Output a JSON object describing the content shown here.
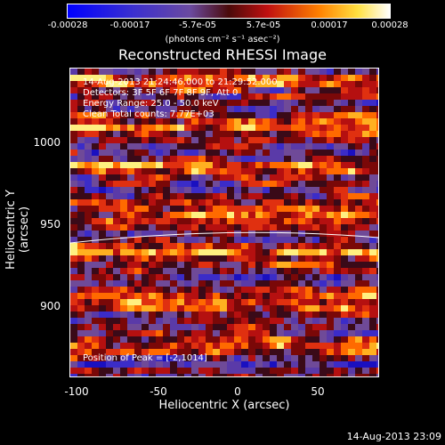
{
  "colorbar": {
    "ticks": [
      "-0.00028",
      "-0.00017",
      "-5.7e-05",
      "5.7e-05",
      "0.00017",
      "0.00028"
    ],
    "unit": "(photons cm⁻² s⁻¹ asec⁻²)"
  },
  "title": "Reconstructed RHESSI Image",
  "annotations": {
    "time": "14-Aug-2013 21:24:46.000 to 21:29:52.000",
    "detectors": "Detectors: 3F 5F 6F 7F 8F 9F, Att 0",
    "energy": "Energy Range: 25.0 - 50.0 keV",
    "clean": "Clean     Total counts: 7.77E+03",
    "peak": "Position of Peak = [-2,1014]"
  },
  "axes": {
    "x_label": "Heliocentric X (arcsec)",
    "y_label": "Heliocentric Y (arcsec)",
    "x_ticks": [
      "-100",
      "-50",
      "0",
      "50"
    ],
    "y_ticks": [
      "1000",
      "950",
      "900"
    ]
  },
  "footer": "14-Aug-2013 23:09",
  "chart_data": {
    "type": "heatmap",
    "title": "Reconstructed RHESSI Image",
    "xlabel": "Heliocentric X (arcsec)",
    "ylabel": "Heliocentric Y (arcsec)",
    "xlim": [
      -102,
      88
    ],
    "ylim": [
      859,
      1033
    ],
    "colorbar_range": [
      -0.00028,
      0.00028
    ],
    "peak": [
      -2,
      1014
    ]
  }
}
